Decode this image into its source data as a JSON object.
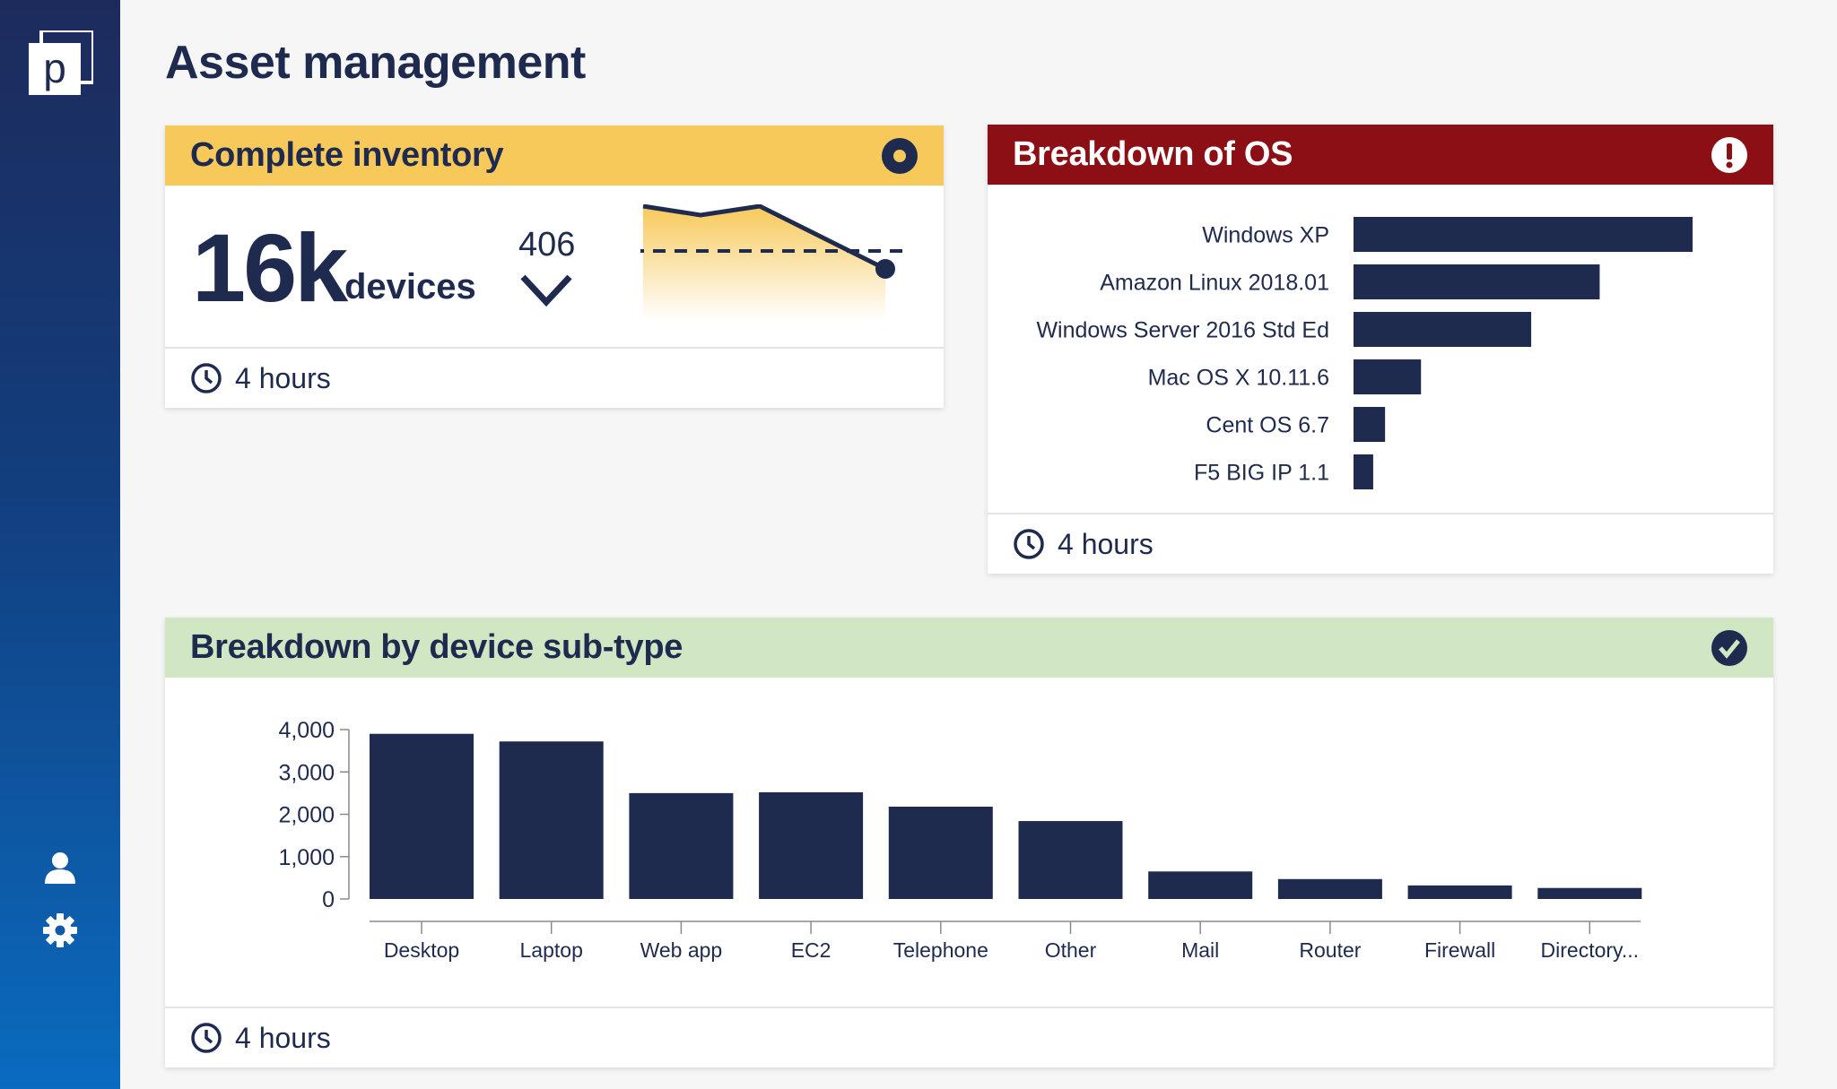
{
  "app": {
    "logo_letter": "p",
    "title": "Asset management"
  },
  "sidebar": {
    "icons": [
      "user-icon",
      "gear-icon"
    ]
  },
  "inventory": {
    "title": "Complete inventory",
    "header_icon": "target-icon",
    "count": "16k",
    "count_unit": "devices",
    "delta": "406",
    "delta_direction": "down",
    "footer": "4 hours",
    "colors": {
      "header": "#f7c95a"
    }
  },
  "os_breakdown": {
    "title": "Breakdown of OS",
    "header_icon": "alert-icon",
    "footer": "4 hours",
    "colors": {
      "header": "#8b0f14",
      "bar": "#1f2a4f"
    },
    "chart_data": {
      "type": "bar",
      "orientation": "horizontal",
      "categories": [
        "Windows XP",
        "Amazon Linux  2018.01",
        "Windows Server 2016 Std Ed",
        "Mac OS X 10.11.6",
        "Cent OS 6.7",
        "F5 BIG IP 1.1"
      ],
      "values": [
        100,
        72.6,
        52.4,
        19.9,
        9.3,
        5.8
      ],
      "grid": false
    }
  },
  "subtype_breakdown": {
    "title": "Breakdown by device sub-type",
    "header_icon": "check-circle-icon",
    "footer": "4 hours",
    "colors": {
      "header": "#d1e6c2",
      "bar": "#1f2a4f"
    },
    "chart_data": {
      "type": "bar",
      "categories": [
        "Desktop",
        "Laptop",
        "Web app",
        "EC2",
        "Telephone",
        "Other",
        "Mail",
        "Router",
        "Firewall",
        "Directory..."
      ],
      "values": [
        3900,
        3720,
        2500,
        2520,
        2180,
        1840,
        650,
        470,
        320,
        260
      ],
      "yticks": [
        "0",
        "1,000",
        "2,000",
        "3,000",
        "4,000"
      ],
      "ylim": [
        0,
        4000
      ],
      "grid": false
    }
  }
}
